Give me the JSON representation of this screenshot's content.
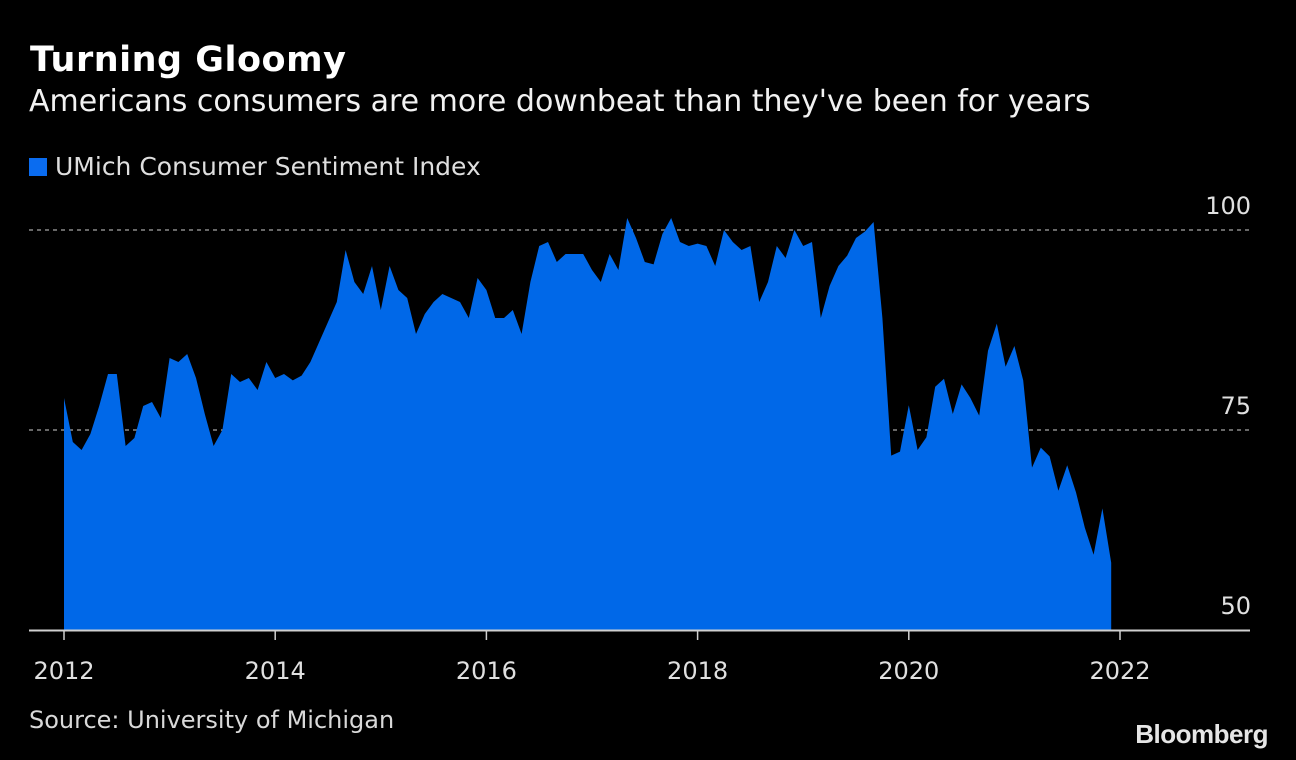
{
  "header": {
    "title": "Turning Gloomy",
    "subtitle": "Americans consumers are more downbeat than they've been for years"
  },
  "footer": {
    "source": "Source: University of Michigan",
    "logo": "Bloomberg"
  },
  "colors": {
    "background": "#000000",
    "series": "#0068E8",
    "legend_swatch": "#0A6CF0",
    "grid": "#8a8a8a",
    "axis": "#d0d0d0"
  },
  "chart_data": {
    "type": "area",
    "title": "Turning Gloomy",
    "subtitle": "Americans consumers are more downbeat than they've been for years",
    "xlabel": "",
    "ylabel": "",
    "legend": [
      "UMich Consumer Sentiment Index"
    ],
    "legend_position": "top-left",
    "ylim": [
      50,
      100
    ],
    "yticks": [
      50,
      75,
      100
    ],
    "ytick_labels": [
      "50",
      "75",
      "100"
    ],
    "y_axis_side": "right",
    "grid": "horizontal dotted at 75 and 100",
    "x_start": "2012-01",
    "x_end": "2022-06",
    "x_frequency": "monthly",
    "xticks": [
      2012,
      2014,
      2016,
      2018,
      2020,
      2022
    ],
    "xtick_labels": [
      "2012",
      "2014",
      "2016",
      "2018",
      "2020",
      "2022"
    ],
    "series": [
      {
        "name": "UMich Consumer Sentiment Index",
        "values": [
          79.0,
          73.5,
          72.5,
          74.5,
          78.0,
          82.0,
          82.0,
          73.0,
          74.0,
          78.0,
          78.5,
          76.5,
          84.0,
          83.5,
          84.5,
          81.5,
          77.0,
          73.0,
          75.0,
          82.0,
          81.0,
          81.5,
          80.0,
          83.5,
          81.5,
          82.0,
          81.2,
          81.8,
          83.5,
          86.0,
          88.5,
          91.0,
          97.5,
          93.5,
          92.0,
          95.5,
          90.0,
          95.5,
          92.5,
          91.5,
          87.0,
          89.5,
          91.0,
          92.0,
          91.5,
          91.0,
          89.0,
          94.0,
          92.5,
          89.0,
          89.0,
          90.0,
          87.0,
          93.5,
          98.0,
          98.5,
          96.0,
          97.0,
          97.0,
          97.0,
          95.0,
          93.5,
          97.0,
          95.0,
          101.5,
          99.0,
          96.0,
          95.7,
          99.5,
          101.5,
          98.5,
          98.0,
          98.3,
          98.0,
          95.5,
          100.0,
          98.5,
          97.5,
          98.0,
          91.0,
          93.5,
          98.0,
          96.5,
          100.0,
          98.0,
          98.5,
          89.0,
          93.0,
          95.5,
          96.8,
          99.0,
          99.8,
          101.0,
          89.0,
          71.8,
          72.3,
          78.1,
          72.5,
          74.1,
          80.4,
          81.4,
          77.0,
          80.7,
          79.0,
          76.8,
          84.9,
          88.3,
          82.9,
          85.5,
          81.2,
          70.3,
          72.8,
          71.7,
          67.4,
          70.6,
          67.2,
          62.8,
          59.4,
          65.2,
          58.4
        ]
      }
    ]
  }
}
